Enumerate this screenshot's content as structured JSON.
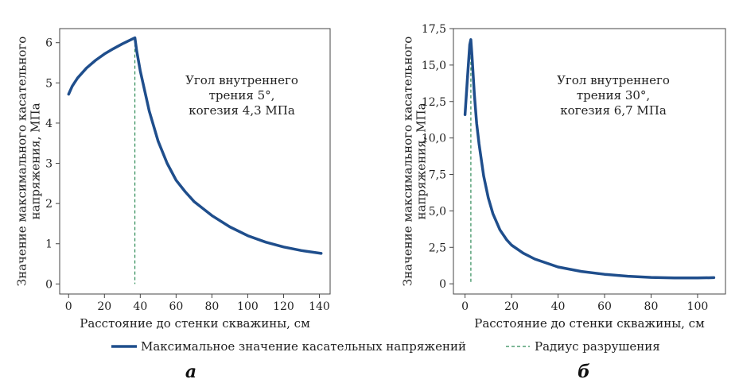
{
  "chart_data": [
    {
      "type": "line",
      "panel_label": "а",
      "xlabel": "Расстояние до стенки скважины, см",
      "ylabel_line1": "Значение максимального касательного",
      "ylabel_line2": "напряжения, МПа",
      "xlim": [
        -5,
        146
      ],
      "ylim": [
        -0.25,
        6.35
      ],
      "xticks": [
        0,
        20,
        40,
        60,
        80,
        100,
        120,
        140
      ],
      "xtick_labels": [
        "0",
        "20",
        "40",
        "60",
        "80",
        "100",
        "120",
        "140"
      ],
      "yticks": [
        0,
        1,
        2,
        3,
        4,
        5,
        6
      ],
      "ytick_labels": [
        "0",
        "1",
        "2",
        "3",
        "4",
        "5",
        "6"
      ],
      "annotation_lines": [
        "Угол внутреннего",
        "трения 5°,",
        "когезия 4,3 МПа"
      ],
      "failure_radius_x": 37,
      "series": [
        {
          "name": "Максимальное значение касательных напряжений",
          "color": "#1f4e8c",
          "x": [
            0,
            2,
            5,
            10,
            15,
            20,
            25,
            30,
            35,
            37,
            38,
            40,
            45,
            50,
            55,
            60,
            65,
            70,
            80,
            90,
            100,
            110,
            120,
            130,
            141
          ],
          "y": [
            4.72,
            4.92,
            5.12,
            5.37,
            5.56,
            5.72,
            5.85,
            5.97,
            6.08,
            6.12,
            5.8,
            5.3,
            4.3,
            3.55,
            3.0,
            2.58,
            2.3,
            2.05,
            1.7,
            1.42,
            1.2,
            1.04,
            0.92,
            0.83,
            0.76
          ]
        }
      ]
    },
    {
      "type": "line",
      "panel_label": "б",
      "xlabel": "Расстояние до стенки скважины, см",
      "ylabel_line1": "Значение максимального касательного",
      "ylabel_line2": "напряжения, МПа",
      "xlim": [
        -5,
        112
      ],
      "ylim": [
        -0.7,
        17.5
      ],
      "xticks": [
        0,
        20,
        40,
        60,
        80,
        100
      ],
      "xtick_labels": [
        "0",
        "20",
        "40",
        "60",
        "80",
        "100"
      ],
      "yticks": [
        0,
        2.5,
        5.0,
        7.5,
        10.0,
        12.5,
        15.0,
        17.5
      ],
      "ytick_labels": [
        "0",
        "2,5",
        "5,0",
        "7,5",
        "10,0",
        "12,5",
        "15,0",
        "17,5"
      ],
      "annotation_lines": [
        "Угол внутреннего",
        "трения 30°,",
        "когезия 6,7 МПа"
      ],
      "failure_radius_x": 2.5,
      "series": [
        {
          "name": "Максимальное значение касательных напряжений",
          "color": "#1f4e8c",
          "x": [
            0,
            1,
            2,
            2.5,
            3,
            4,
            5,
            6,
            8,
            10,
            12,
            15,
            18,
            20,
            25,
            30,
            40,
            50,
            60,
            70,
            80,
            90,
            100,
            107
          ],
          "y": [
            11.6,
            14.0,
            16.4,
            16.75,
            15.6,
            13.0,
            11.0,
            9.6,
            7.4,
            5.9,
            4.8,
            3.7,
            3.0,
            2.65,
            2.1,
            1.7,
            1.15,
            0.85,
            0.65,
            0.52,
            0.44,
            0.4,
            0.4,
            0.42
          ]
        }
      ]
    }
  ],
  "legend": {
    "line_label": "Максимальное значение касательных напряжений",
    "dashed_label": "Радиус разрушения",
    "line_color": "#1f4e8c",
    "dashed_color": "#2e8b57"
  }
}
